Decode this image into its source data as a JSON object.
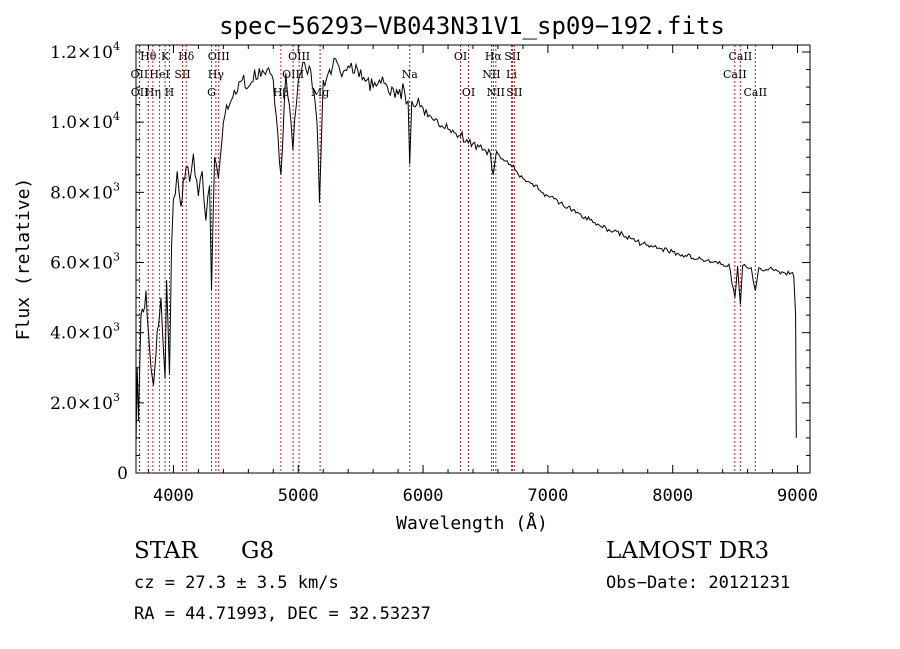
{
  "chart_data": {
    "type": "line",
    "title": "spec−56293−VB043N31V1_sp09−192.fits",
    "xlabel": "Wavelength (Å)",
    "ylabel": "Flux (relative)",
    "xlim": [
      3700,
      9100
    ],
    "ylim": [
      0,
      12200
    ],
    "x_ticks": [
      {
        "value": 4000,
        "label": "4000"
      },
      {
        "value": 5000,
        "label": "5000"
      },
      {
        "value": 6000,
        "label": "6000"
      },
      {
        "value": 7000,
        "label": "7000"
      },
      {
        "value": 8000,
        "label": "8000"
      },
      {
        "value": 9000,
        "label": "9000"
      }
    ],
    "y_ticks": [
      {
        "value": 0,
        "mant": "0",
        "exp": ""
      },
      {
        "value": 2000,
        "mant": "2.0×10",
        "exp": "3"
      },
      {
        "value": 4000,
        "mant": "4.0×10",
        "exp": "3"
      },
      {
        "value": 6000,
        "mant": "6.0×10",
        "exp": "3"
      },
      {
        "value": 8000,
        "mant": "8.0×10",
        "exp": "3"
      },
      {
        "value": 10000,
        "mant": "1.0×10",
        "exp": "4"
      },
      {
        "value": 12000,
        "mant": "1.2×10",
        "exp": "4"
      }
    ],
    "spectrum": {
      "x": [
        3700,
        3710,
        3720,
        3740,
        3760,
        3780,
        3800,
        3820,
        3840,
        3860,
        3880,
        3900,
        3920,
        3933,
        3945,
        3968,
        3985,
        4000,
        4030,
        4060,
        4080,
        4100,
        4130,
        4160,
        4200,
        4230,
        4260,
        4290,
        4305,
        4330,
        4360,
        4400,
        4450,
        4500,
        4550,
        4600,
        4650,
        4700,
        4750,
        4800,
        4861,
        4900,
        4957,
        5000,
        5050,
        5100,
        5150,
        5170,
        5200,
        5250,
        5300,
        5350,
        5400,
        5450,
        5500,
        5550,
        5600,
        5650,
        5700,
        5750,
        5800,
        5850,
        5880,
        5893,
        5910,
        5950,
        6000,
        6050,
        6100,
        6150,
        6200,
        6250,
        6300,
        6350,
        6400,
        6450,
        6500,
        6540,
        6563,
        6580,
        6600,
        6650,
        6700,
        6750,
        6800,
        6850,
        6900,
        6950,
        7000,
        7100,
        7200,
        7300,
        7400,
        7500,
        7600,
        7700,
        7800,
        7900,
        8000,
        8100,
        8200,
        8300,
        8400,
        8450,
        8498,
        8520,
        8542,
        8560,
        8600,
        8630,
        8662,
        8690,
        8750,
        8800,
        8850,
        8900,
        8950,
        8970,
        8985,
        8990
      ],
      "y": [
        800,
        3000,
        1500,
        4500,
        4600,
        5200,
        4000,
        3000,
        2500,
        3400,
        4200,
        5000,
        3500,
        2700,
        5500,
        2800,
        6500,
        7800,
        8600,
        7600,
        8400,
        8700,
        8300,
        9100,
        7900,
        8600,
        7200,
        8200,
        5200,
        9000,
        8400,
        10000,
        10500,
        10800,
        11200,
        11000,
        11500,
        11300,
        11500,
        11200,
        8500,
        11400,
        9200,
        11200,
        11700,
        11500,
        10000,
        7700,
        11200,
        11500,
        11800,
        11300,
        11600,
        11400,
        11500,
        11200,
        11000,
        11200,
        11100,
        11000,
        10800,
        10900,
        10600,
        8800,
        10600,
        10500,
        10400,
        10200,
        10100,
        9900,
        9800,
        9700,
        9600,
        9500,
        9400,
        9300,
        9200,
        9100,
        8500,
        9000,
        9100,
        8900,
        8800,
        8600,
        8400,
        8300,
        8200,
        8000,
        7900,
        7700,
        7500,
        7300,
        7100,
        6900,
        6800,
        6600,
        6500,
        6400,
        6300,
        6200,
        6100,
        6000,
        5950,
        5950,
        5000,
        5900,
        4800,
        5900,
        5850,
        5850,
        5200,
        5850,
        5800,
        5800,
        5750,
        5700,
        5700,
        5600,
        4500,
        1000
      ]
    },
    "lines": [
      {
        "name": "Hθ",
        "wl": 3798,
        "row": 0
      },
      {
        "name": "OII",
        "wl": 3727,
        "row": 1
      },
      {
        "name": "OII",
        "wl": 3729,
        "row": 2
      },
      {
        "name": "K",
        "wl": 3933,
        "row": 0
      },
      {
        "name": "HeI",
        "wl": 3889,
        "row": 1
      },
      {
        "name": "Hη",
        "wl": 3835,
        "row": 2
      },
      {
        "name": "Hδ",
        "wl": 4102,
        "row": 0
      },
      {
        "name": "SII",
        "wl": 4072,
        "row": 1
      },
      {
        "name": "H",
        "wl": 3968,
        "row": 2
      },
      {
        "name": "OIII",
        "wl": 4363,
        "row": 0
      },
      {
        "name": "Hγ",
        "wl": 4340,
        "row": 1
      },
      {
        "name": "G",
        "wl": 4305,
        "row": 2
      },
      {
        "name": "OIII",
        "wl": 5007,
        "row": 0
      },
      {
        "name": "OIII",
        "wl": 4959,
        "row": 1
      },
      {
        "name": "Hβ",
        "wl": 4861,
        "row": 2
      },
      {
        "name": "Mg",
        "wl": 5175,
        "row": 2
      },
      {
        "name": "Na",
        "wl": 5893,
        "row": 1
      },
      {
        "name": "OI",
        "wl": 6300,
        "row": 0
      },
      {
        "name": "OI",
        "wl": 6364,
        "row": 2
      },
      {
        "name": "Hα",
        "wl": 6563,
        "row": 0
      },
      {
        "name": "SII",
        "wl": 6716,
        "row": 0
      },
      {
        "name": "NII",
        "wl": 6548,
        "row": 1
      },
      {
        "name": "Li",
        "wl": 6708,
        "row": 1
      },
      {
        "name": "NII",
        "wl": 6583,
        "row": 2
      },
      {
        "name": "SII",
        "wl": 6731,
        "row": 2
      },
      {
        "name": "CaII",
        "wl": 8542,
        "row": 0
      },
      {
        "name": "CaII",
        "wl": 8498,
        "row": 1
      },
      {
        "name": "CaII",
        "wl": 8662,
        "row": 2
      }
    ]
  },
  "info": {
    "class_label": "STAR",
    "subclass": "G8",
    "survey": "LAMOST DR3",
    "cz": "cz = 27.3 ± 3.5 km/s",
    "obs_date": "Obs−Date: 20121231",
    "coords": "RA =  44.71993, DEC =  32.53237"
  }
}
